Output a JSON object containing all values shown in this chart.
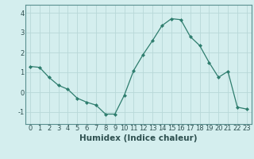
{
  "x": [
    0,
    1,
    2,
    3,
    4,
    5,
    6,
    7,
    8,
    9,
    10,
    11,
    12,
    13,
    14,
    15,
    16,
    17,
    18,
    19,
    20,
    21,
    22,
    23
  ],
  "y": [
    1.3,
    1.25,
    0.75,
    0.35,
    0.15,
    -0.3,
    -0.5,
    -0.65,
    -1.1,
    -1.1,
    -0.15,
    1.1,
    1.9,
    2.6,
    3.35,
    3.7,
    3.65,
    2.8,
    2.35,
    1.5,
    0.75,
    1.05,
    -0.75,
    -0.85
  ],
  "line_color": "#2e7d6e",
  "marker": "D",
  "marker_size": 2.0,
  "bg_color": "#d4eeee",
  "grid_color": "#b8d8d8",
  "xlabel": "Humidex (Indice chaleur)",
  "xlabel_fontsize": 7.5,
  "xlabel_fontweight": "bold",
  "ylim": [
    -1.6,
    4.4
  ],
  "xlim": [
    -0.5,
    23.5
  ],
  "yticks": [
    -1,
    0,
    1,
    2,
    3,
    4
  ],
  "xticks": [
    0,
    1,
    2,
    3,
    4,
    5,
    6,
    7,
    8,
    9,
    10,
    11,
    12,
    13,
    14,
    15,
    16,
    17,
    18,
    19,
    20,
    21,
    22,
    23
  ],
  "tick_fontsize": 6.0
}
